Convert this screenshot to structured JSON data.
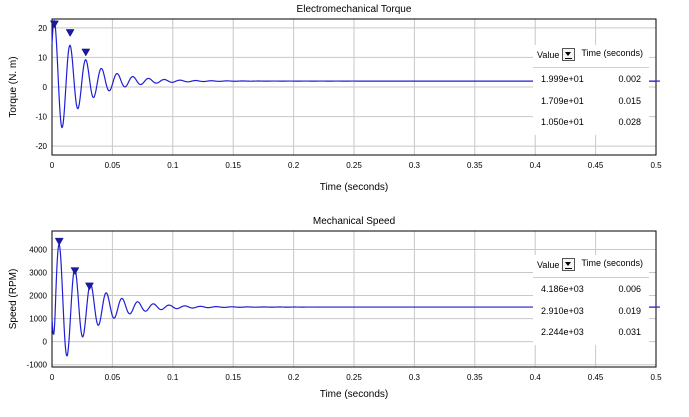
{
  "chart_data": [
    {
      "type": "line",
      "title": "Electromechanical Torque",
      "xlabel": "Time (seconds)",
      "ylabel": "Torque (N. m)",
      "xlim": [
        0,
        0.5
      ],
      "ylim": [
        -23,
        23
      ],
      "xticks": [
        "0",
        "0.05",
        "0.1",
        "0.15",
        "0.2",
        "0.25",
        "0.3",
        "0.35",
        "0.4",
        "0.45",
        "0.5"
      ],
      "yticks": [
        "-20",
        "-10",
        "0",
        "10",
        "20"
      ],
      "grid": true,
      "line_color": "#1f1fd6",
      "signal": {
        "steady_value": 2,
        "peak_amplitude": 22,
        "decay_rate": 40,
        "frequency_hz": 76.9
      },
      "peak_markers": [
        {
          "x": 0.002,
          "y": 19.99
        },
        {
          "x": 0.015,
          "y": 17.09
        },
        {
          "x": 0.028,
          "y": 10.5
        }
      ],
      "measurement_table": {
        "value_header": "Value",
        "time_header": "Time (seconds)",
        "rows": [
          {
            "value": "1.999e+01",
            "time": "0.002"
          },
          {
            "value": "1.709e+01",
            "time": "0.015"
          },
          {
            "value": "1.050e+01",
            "time": "0.028"
          }
        ]
      }
    },
    {
      "type": "line",
      "title": "Mechanical Speed",
      "xlabel": "Time (seconds)",
      "ylabel": "Speed (RPM)",
      "xlim": [
        0,
        0.5
      ],
      "ylim": [
        -1100,
        4800
      ],
      "xticks": [
        "0",
        "0.05",
        "0.1",
        "0.15",
        "0.2",
        "0.25",
        "0.3",
        "0.35",
        "0.4",
        "0.45",
        "0.5"
      ],
      "yticks": [
        "-1000",
        "0",
        "1000",
        "2000",
        "3000",
        "4000"
      ],
      "grid": true,
      "line_color": "#1f1fd6",
      "signal": {
        "steady_value": 1500,
        "peak_amplitude": 3400,
        "decay_rate": 38,
        "frequency_hz": 76.9,
        "start_value": 1000
      },
      "peak_markers": [
        {
          "x": 0.006,
          "y": 4186
        },
        {
          "x": 0.019,
          "y": 2910
        },
        {
          "x": 0.031,
          "y": 2244
        }
      ],
      "measurement_table": {
        "value_header": "Value",
        "time_header": "Time (seconds)",
        "rows": [
          {
            "value": "4.186e+03",
            "time": "0.006"
          },
          {
            "value": "2.910e+03",
            "time": "0.019"
          },
          {
            "value": "2.244e+03",
            "time": "0.031"
          }
        ]
      }
    }
  ]
}
